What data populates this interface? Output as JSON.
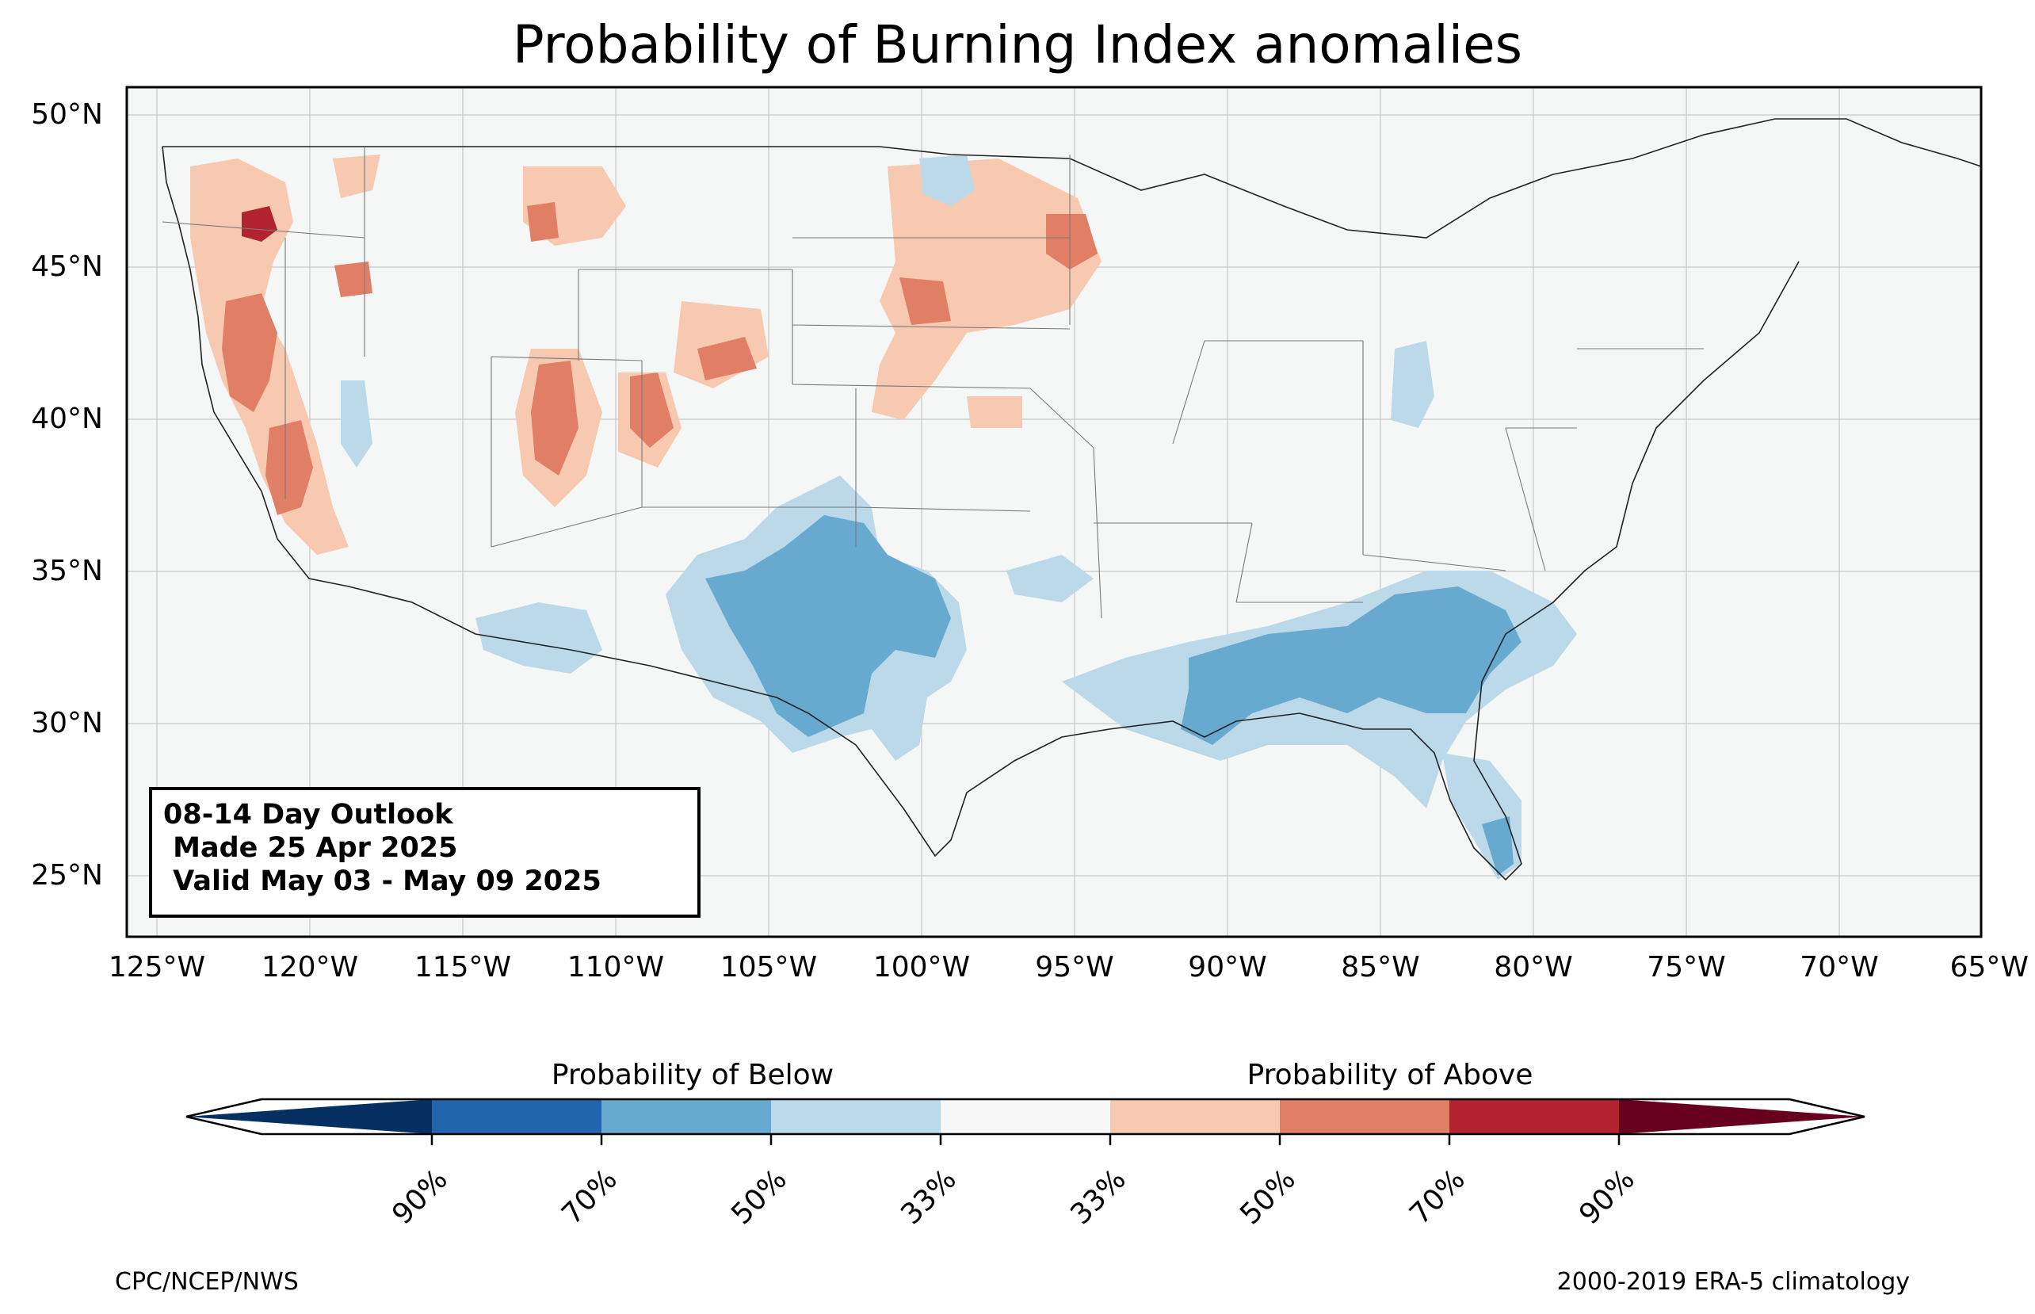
{
  "title": "Probability of Burning Index anomalies",
  "outlook": {
    "line1": "08-14 Day Outlook",
    "line2": " Made 25 Apr 2025",
    "line3": " Valid May 03 - May 09 2025"
  },
  "lat_labels": [
    "50°N",
    "45°N",
    "40°N",
    "35°N",
    "30°N",
    "25°N"
  ],
  "lon_labels": [
    "125°W",
    "120°W",
    "115°W",
    "110°W",
    "105°W",
    "100°W",
    "95°W",
    "90°W",
    "85°W",
    "80°W",
    "75°W",
    "70°W",
    "65°W"
  ],
  "colorbar": {
    "below_title": "Probability of Below",
    "above_title": "Probability of Above",
    "tick_labels": [
      "90%",
      "70%",
      "50%",
      "33%",
      "33%",
      "50%",
      "70%",
      "90%"
    ],
    "colors": [
      "#053061",
      "#2166ac",
      "#67a9cf",
      "#bcd9ea",
      "#f7f7f7",
      "#f7c9b0",
      "#e07e66",
      "#b2242f",
      "#67001f"
    ]
  },
  "footer": {
    "left": "CPC/NCEP/NWS",
    "right": "2000-2019 ERA-5 climatology"
  },
  "colors": {
    "ocean_land": "#f5f6f6",
    "below_33": "#bcd9ea",
    "below_50": "#67a9cf",
    "above_33": "#f7c9b0",
    "above_50": "#e07e66",
    "above_70": "#b2242f"
  }
}
